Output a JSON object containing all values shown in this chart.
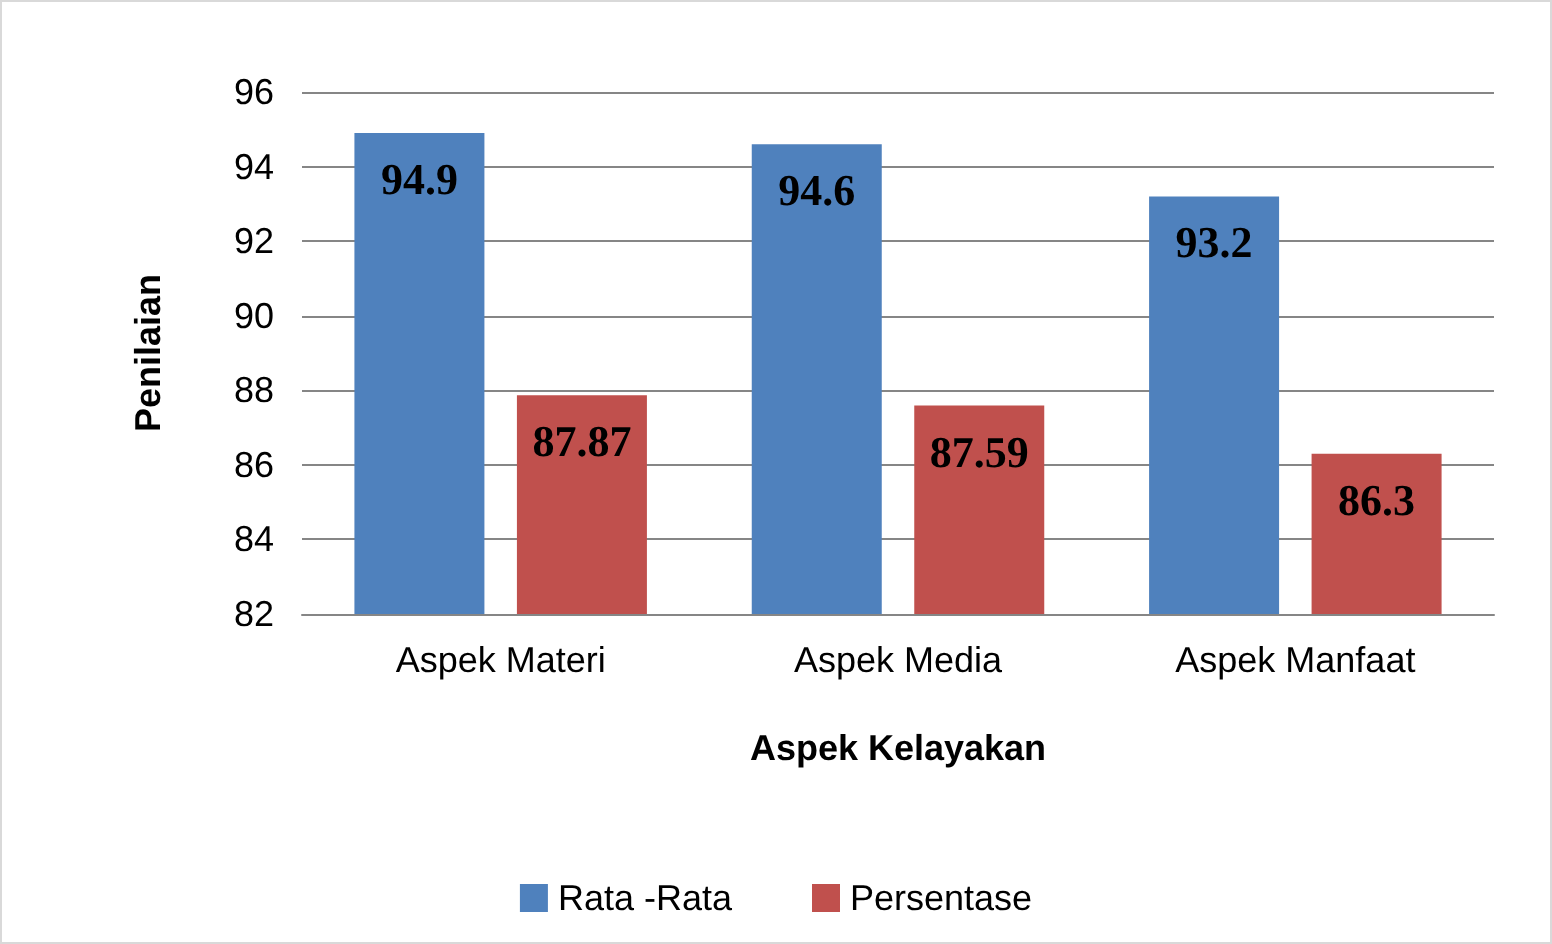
{
  "chart_data": {
    "type": "bar",
    "categories": [
      "Aspek Materi",
      "Aspek Media",
      "Aspek Manfaat"
    ],
    "series": [
      {
        "name": "Rata -Rata",
        "color": "#4f81bd",
        "values": [
          94.9,
          94.6,
          93.2
        ]
      },
      {
        "name": "Persentase",
        "color": "#c0504d",
        "values": [
          87.87,
          87.59,
          86.3
        ]
      }
    ],
    "xlabel": "Aspek Kelayakan",
    "ylabel": "Penilaian",
    "ylim": [
      82,
      96
    ],
    "yticks": [
      82,
      84,
      86,
      88,
      90,
      92,
      94,
      96
    ],
    "grid": "y",
    "legend": "bottom",
    "data_labels": true
  }
}
